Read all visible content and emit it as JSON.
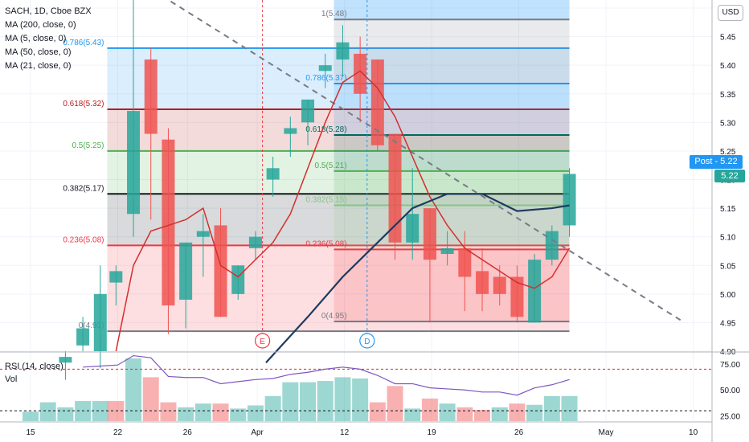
{
  "legend": {
    "symbol": "SACH, 1D, Cboe BZX",
    "ma200": "MA (200, close, 0)",
    "ma5": "MA (5, close, 0)",
    "ma50": "MA (50, close, 0)",
    "ma21": "MA (21, close, 0)"
  },
  "rsi_legend": {
    "rsi": "RSI (14, close)",
    "vol": "Vol"
  },
  "currency_button": "USD",
  "post_label": "Post - 5.22",
  "last_price_label": "5.22",
  "chart_data": {
    "type": "candlestick",
    "title": "SACH, 1D, Cboe BZX",
    "ylim": [
      4.9,
      5.5
    ],
    "y_ticks": [
      "5.50",
      "5.45",
      "5.40",
      "5.35",
      "5.30",
      "5.25",
      "5.20",
      "5.15",
      "5.10",
      "5.05",
      "5.00",
      "4.95",
      "4.90"
    ],
    "x_ticks": [
      {
        "label": "15",
        "t": 0
      },
      {
        "label": "22",
        "t": 5
      },
      {
        "label": "26",
        "t": 9
      },
      {
        "label": "Apr",
        "t": 13
      },
      {
        "label": "12",
        "t": 18
      },
      {
        "label": "19",
        "t": 23
      },
      {
        "label": "26",
        "t": 28
      },
      {
        "label": "May",
        "t": 33
      },
      {
        "label": "10",
        "t": 38
      }
    ],
    "candles": [
      {
        "t": 2,
        "o": 4.88,
        "h": 4.9,
        "l": 4.85,
        "c": 4.89
      },
      {
        "t": 3,
        "o": 4.91,
        "h": 4.96,
        "l": 4.9,
        "c": 4.94
      },
      {
        "t": 4,
        "o": 4.9,
        "h": 5.05,
        "l": 4.87,
        "c": 5.0
      },
      {
        "t": 4.9,
        "o": 5.02,
        "h": 5.05,
        "l": 4.98,
        "c": 5.04
      },
      {
        "t": 5.9,
        "o": 5.14,
        "h": 5.56,
        "l": 5.1,
        "c": 5.32
      },
      {
        "t": 6.9,
        "o": 5.41,
        "h": 5.43,
        "l": 5.13,
        "c": 5.28
      },
      {
        "t": 7.9,
        "o": 5.27,
        "h": 5.29,
        "l": 4.93,
        "c": 4.98
      },
      {
        "t": 8.9,
        "o": 4.99,
        "h": 5.09,
        "l": 4.94,
        "c": 5.09
      },
      {
        "t": 9.9,
        "o": 5.1,
        "h": 5.14,
        "l": 5.03,
        "c": 5.11
      },
      {
        "t": 10.9,
        "o": 5.12,
        "h": 5.15,
        "l": 4.96,
        "c": 4.96
      },
      {
        "t": 11.9,
        "o": 5.0,
        "h": 5.05,
        "l": 4.99,
        "c": 5.05
      },
      {
        "t": 12.9,
        "o": 5.08,
        "h": 5.11,
        "l": 5.06,
        "c": 5.1
      },
      {
        "t": 13.9,
        "o": 5.2,
        "h": 5.24,
        "l": 5.17,
        "c": 5.22
      },
      {
        "t": 14.9,
        "o": 5.28,
        "h": 5.31,
        "l": 5.24,
        "c": 5.29
      },
      {
        "t": 15.9,
        "o": 5.3,
        "h": 5.34,
        "l": 5.26,
        "c": 5.34
      },
      {
        "t": 16.9,
        "o": 5.39,
        "h": 5.42,
        "l": 5.36,
        "c": 5.4
      },
      {
        "t": 17.9,
        "o": 5.41,
        "h": 5.47,
        "l": 5.38,
        "c": 5.44
      },
      {
        "t": 18.9,
        "o": 5.42,
        "h": 5.45,
        "l": 5.3,
        "c": 5.35
      },
      {
        "t": 19.9,
        "o": 5.41,
        "h": 5.41,
        "l": 5.25,
        "c": 5.26
      },
      {
        "t": 20.9,
        "o": 5.28,
        "h": 5.28,
        "l": 5.06,
        "c": 5.09
      },
      {
        "t": 21.9,
        "o": 5.09,
        "h": 5.22,
        "l": 5.06,
        "c": 5.14
      },
      {
        "t": 22.9,
        "o": 5.15,
        "h": 5.15,
        "l": 4.95,
        "c": 5.06
      },
      {
        "t": 23.9,
        "o": 5.07,
        "h": 5.11,
        "l": 5.05,
        "c": 5.08
      },
      {
        "t": 24.9,
        "o": 5.08,
        "h": 5.11,
        "l": 4.97,
        "c": 5.03
      },
      {
        "t": 25.9,
        "o": 5.04,
        "h": 5.08,
        "l": 4.97,
        "c": 5.0
      },
      {
        "t": 26.9,
        "o": 5.03,
        "h": 5.05,
        "l": 4.98,
        "c": 5.0
      },
      {
        "t": 27.9,
        "o": 5.03,
        "h": 5.05,
        "l": 4.95,
        "c": 4.96
      },
      {
        "t": 28.9,
        "o": 4.95,
        "h": 5.07,
        "l": 4.95,
        "c": 5.06
      },
      {
        "t": 29.9,
        "o": 5.06,
        "h": 5.12,
        "l": 5.05,
        "c": 5.11
      },
      {
        "t": 30.9,
        "o": 5.12,
        "h": 5.22,
        "l": 5.1,
        "c": 5.21
      }
    ],
    "fib_left": {
      "t_start": 4.4,
      "t_end": 30.9,
      "levels": [
        {
          "label": "0(4.93)",
          "v": 4.935,
          "color": "#787b86"
        },
        {
          "label": "0.236(5.08)",
          "v": 5.085,
          "color": "#f23645"
        },
        {
          "label": "0.382(5.17)",
          "v": 5.175,
          "color": "#131722"
        },
        {
          "label": "0.5(5.25)",
          "v": 5.25,
          "color": "#4caf50"
        },
        {
          "label": "0.618(5.32)",
          "v": 5.323,
          "color": "#b71c1c"
        },
        {
          "label": "0.786(5.43)",
          "v": 5.43,
          "color": "#2196f3"
        }
      ]
    },
    "fib_right": {
      "t_start": 17.4,
      "t_end": 30.9,
      "levels": [
        {
          "label": "0(4.95)",
          "v": 4.952,
          "color": "#787b86"
        },
        {
          "label": "0.236(5.08)",
          "v": 5.078,
          "color": "#f23645"
        },
        {
          "label": "0.382(5.15)",
          "v": 5.155,
          "color": "#81c784"
        },
        {
          "label": "0.5(5.21)",
          "v": 5.215,
          "color": "#4caf50"
        },
        {
          "label": "0.618(5.28)",
          "v": 5.278,
          "color": "#00695c"
        },
        {
          "label": "0.786(5.37)",
          "v": 5.368,
          "color": "#2196f3"
        },
        {
          "label": "1(5.48)",
          "v": 5.48,
          "color": "#787b86"
        }
      ]
    },
    "trendline": [
      {
        "t": 5.5,
        "v": 5.56
      },
      {
        "t": 37.5,
        "v": 4.95
      }
    ],
    "ma5": [
      {
        "t": 4.9,
        "v": 4.9
      },
      {
        "t": 5.9,
        "v": 5.05
      },
      {
        "t": 6.9,
        "v": 5.11
      },
      {
        "t": 7.9,
        "v": 5.12
      },
      {
        "t": 8.9,
        "v": 5.13
      },
      {
        "t": 9.9,
        "v": 5.15
      },
      {
        "t": 10.9,
        "v": 5.05
      },
      {
        "t": 11.9,
        "v": 5.03
      },
      {
        "t": 12.9,
        "v": 5.06
      },
      {
        "t": 13.9,
        "v": 5.09
      },
      {
        "t": 14.9,
        "v": 5.14
      },
      {
        "t": 15.9,
        "v": 5.22
      },
      {
        "t": 16.9,
        "v": 5.3
      },
      {
        "t": 17.9,
        "v": 5.37
      },
      {
        "t": 18.9,
        "v": 5.39
      },
      {
        "t": 19.9,
        "v": 5.36
      },
      {
        "t": 20.9,
        "v": 5.31
      },
      {
        "t": 21.9,
        "v": 5.24
      },
      {
        "t": 22.9,
        "v": 5.17
      },
      {
        "t": 23.9,
        "v": 5.12
      },
      {
        "t": 24.9,
        "v": 5.08
      },
      {
        "t": 25.9,
        "v": 5.06
      },
      {
        "t": 26.9,
        "v": 5.04
      },
      {
        "t": 27.9,
        "v": 5.02
      },
      {
        "t": 28.9,
        "v": 5.01
      },
      {
        "t": 29.9,
        "v": 5.03
      },
      {
        "t": 30.9,
        "v": 5.08
      }
    ],
    "ma21": [
      {
        "t": 13.5,
        "v": 4.88
      },
      {
        "t": 15.9,
        "v": 4.96
      },
      {
        "t": 17.9,
        "v": 5.03
      },
      {
        "t": 19.9,
        "v": 5.09
      },
      {
        "t": 21.9,
        "v": 5.15
      },
      {
        "t": 23.9,
        "v": 5.175
      },
      {
        "t": 25.9,
        "v": 5.175
      },
      {
        "t": 27.9,
        "v": 5.145
      },
      {
        "t": 29.9,
        "v": 5.15
      },
      {
        "t": 30.9,
        "v": 5.155
      }
    ],
    "vertical_markers": [
      {
        "t": 13.3,
        "label": "E",
        "color": "#f23645"
      },
      {
        "t": 19.3,
        "label": "D",
        "color": "#2196f3"
      }
    ],
    "rsi": {
      "ylim": [
        20,
        85
      ],
      "ticks": [
        "75.00",
        "50.00",
        "25.00"
      ],
      "overbought": 70,
      "oversold": 30,
      "series": [
        {
          "t": 3,
          "v": 72
        },
        {
          "t": 4,
          "v": 73
        },
        {
          "t": 5,
          "v": 74
        },
        {
          "t": 5.9,
          "v": 83
        },
        {
          "t": 6.9,
          "v": 81
        },
        {
          "t": 7.9,
          "v": 63
        },
        {
          "t": 8.9,
          "v": 62
        },
        {
          "t": 9.9,
          "v": 62
        },
        {
          "t": 10.9,
          "v": 56
        },
        {
          "t": 11.9,
          "v": 58
        },
        {
          "t": 12.9,
          "v": 60
        },
        {
          "t": 13.9,
          "v": 61
        },
        {
          "t": 14.9,
          "v": 65
        },
        {
          "t": 15.9,
          "v": 67
        },
        {
          "t": 16.9,
          "v": 70
        },
        {
          "t": 17.9,
          "v": 72
        },
        {
          "t": 18.9,
          "v": 70
        },
        {
          "t": 19.9,
          "v": 64
        },
        {
          "t": 20.9,
          "v": 56
        },
        {
          "t": 21.9,
          "v": 56
        },
        {
          "t": 22.9,
          "v": 52
        },
        {
          "t": 23.9,
          "v": 51
        },
        {
          "t": 24.9,
          "v": 50
        },
        {
          "t": 25.9,
          "v": 48
        },
        {
          "t": 26.9,
          "v": 48
        },
        {
          "t": 27.9,
          "v": 45
        },
        {
          "t": 28.9,
          "v": 52
        },
        {
          "t": 29.9,
          "v": 55
        },
        {
          "t": 30.9,
          "v": 60
        }
      ]
    },
    "volume": {
      "max": 100,
      "bars": [
        {
          "t": 0,
          "v": 15,
          "up": true
        },
        {
          "t": 1,
          "v": 30,
          "up": true
        },
        {
          "t": 2,
          "v": 22,
          "up": true
        },
        {
          "t": 3,
          "v": 32,
          "up": true
        },
        {
          "t": 4,
          "v": 32,
          "up": true
        },
        {
          "t": 4.9,
          "v": 32,
          "up": false
        },
        {
          "t": 5.9,
          "v": 100,
          "up": true
        },
        {
          "t": 6.9,
          "v": 70,
          "up": false
        },
        {
          "t": 7.9,
          "v": 30,
          "up": false
        },
        {
          "t": 8.9,
          "v": 22,
          "up": true
        },
        {
          "t": 9.9,
          "v": 28,
          "up": true
        },
        {
          "t": 10.9,
          "v": 28,
          "up": false
        },
        {
          "t": 11.9,
          "v": 20,
          "up": true
        },
        {
          "t": 12.9,
          "v": 25,
          "up": true
        },
        {
          "t": 13.9,
          "v": 40,
          "up": true
        },
        {
          "t": 14.9,
          "v": 62,
          "up": true
        },
        {
          "t": 15.9,
          "v": 62,
          "up": true
        },
        {
          "t": 16.9,
          "v": 64,
          "up": true
        },
        {
          "t": 17.9,
          "v": 70,
          "up": true
        },
        {
          "t": 18.9,
          "v": 68,
          "up": true
        },
        {
          "t": 19.9,
          "v": 30,
          "up": false
        },
        {
          "t": 20.9,
          "v": 56,
          "up": false
        },
        {
          "t": 21.9,
          "v": 20,
          "up": true
        },
        {
          "t": 22.9,
          "v": 36,
          "up": false
        },
        {
          "t": 23.9,
          "v": 28,
          "up": true
        },
        {
          "t": 24.9,
          "v": 22,
          "up": false
        },
        {
          "t": 25.9,
          "v": 18,
          "up": false
        },
        {
          "t": 26.9,
          "v": 22,
          "up": true
        },
        {
          "t": 27.9,
          "v": 28,
          "up": false
        },
        {
          "t": 28.9,
          "v": 26,
          "up": true
        },
        {
          "t": 29.9,
          "v": 40,
          "up": true
        },
        {
          "t": 30.9,
          "v": 40,
          "up": true
        }
      ]
    }
  }
}
